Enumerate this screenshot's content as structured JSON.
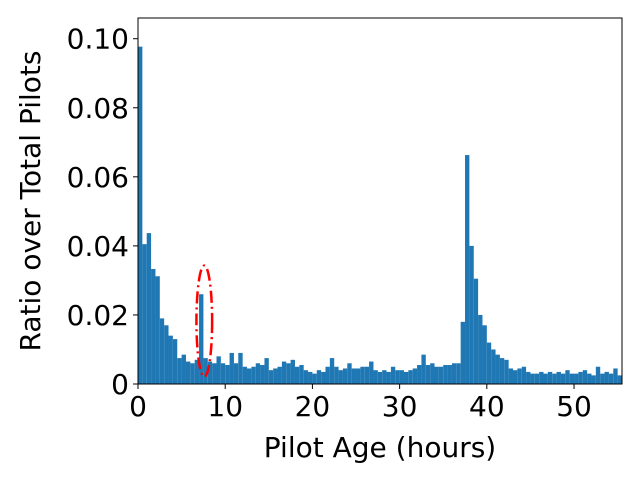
{
  "chart_data": {
    "type": "bar",
    "xlabel": "Pilot Age (hours)",
    "ylabel": "Ratio over Total Pilots",
    "xlim": [
      0,
      55.5
    ],
    "ylim": [
      0,
      0.106
    ],
    "xticks": [
      0,
      10,
      20,
      30,
      40,
      50
    ],
    "xtick_labels": [
      "0",
      "10",
      "20",
      "30",
      "40",
      "50"
    ],
    "yticks": [
      0,
      0.02,
      0.04,
      0.06,
      0.08,
      0.1
    ],
    "ytick_labels": [
      "0",
      "0.02",
      "0.04",
      "0.06",
      "0.08",
      "0.10"
    ],
    "bin_width": 0.5,
    "bin_start": 0,
    "bar_color": "#1f77b4",
    "values": [
      0.0977,
      0.0405,
      0.0437,
      0.0333,
      0.0312,
      0.019,
      0.017,
      0.014,
      0.013,
      0.0075,
      0.0085,
      0.0065,
      0.006,
      0.007,
      0.026,
      0.0075,
      0.0065,
      0.006,
      0.008,
      0.006,
      0.0055,
      0.009,
      0.006,
      0.009,
      0.005,
      0.0045,
      0.005,
      0.006,
      0.0055,
      0.0075,
      0.004,
      0.0045,
      0.005,
      0.0065,
      0.006,
      0.007,
      0.005,
      0.0055,
      0.004,
      0.0035,
      0.003,
      0.004,
      0.0035,
      0.005,
      0.0075,
      0.005,
      0.004,
      0.0045,
      0.006,
      0.0045,
      0.0045,
      0.005,
      0.005,
      0.0065,
      0.004,
      0.0035,
      0.004,
      0.0035,
      0.005,
      0.004,
      0.004,
      0.0035,
      0.004,
      0.0045,
      0.0055,
      0.0085,
      0.0055,
      0.006,
      0.005,
      0.005,
      0.0055,
      0.0055,
      0.006,
      0.006,
      0.018,
      0.0663,
      0.04,
      0.0305,
      0.02,
      0.017,
      0.012,
      0.01,
      0.0085,
      0.0075,
      0.007,
      0.0045,
      0.004,
      0.0045,
      0.005,
      0.0035,
      0.003,
      0.003,
      0.0035,
      0.003,
      0.0035,
      0.003,
      0.0035,
      0.003,
      0.004,
      0.003,
      0.003,
      0.0035,
      0.004,
      0.003,
      0.0025,
      0.005,
      0.003,
      0.0035,
      0.003,
      0.0045,
      0.0025
    ],
    "annotation": {
      "type": "dash-dot ellipse",
      "color": "#ff0000",
      "center_x": 7.6,
      "center_y": 0.0182,
      "radius_x": 0.9,
      "radius_y": 0.0161
    }
  }
}
